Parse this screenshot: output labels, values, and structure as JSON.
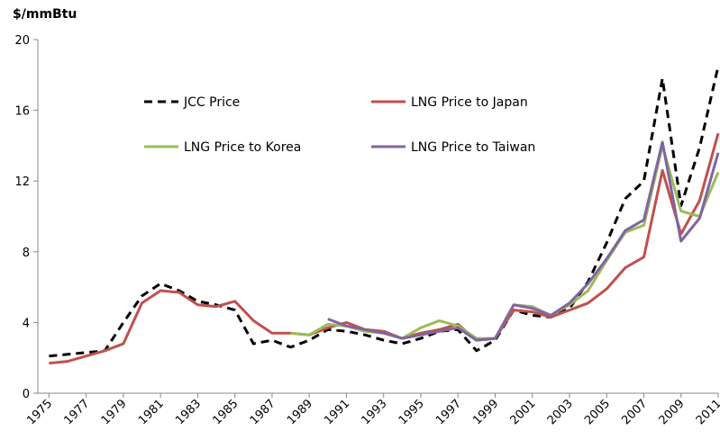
{
  "chart_data": {
    "type": "line",
    "y_label": "$/mmBtu",
    "x": [
      1975,
      1976,
      1977,
      1978,
      1979,
      1980,
      1981,
      1982,
      1983,
      1984,
      1985,
      1986,
      1987,
      1988,
      1989,
      1990,
      1991,
      1992,
      1993,
      1994,
      1995,
      1996,
      1997,
      1998,
      1999,
      2000,
      2001,
      2002,
      2003,
      2004,
      2005,
      2006,
      2007,
      2008,
      2009,
      2010,
      2011
    ],
    "xlim": [
      1974.4,
      2011
    ],
    "xticks": [
      1975,
      1977,
      1979,
      1981,
      1983,
      1985,
      1987,
      1989,
      1991,
      1993,
      1995,
      1997,
      1999,
      2001,
      2003,
      2005,
      2007,
      2009,
      2011
    ],
    "ylim": [
      0,
      20
    ],
    "yticks": [
      0,
      4,
      8,
      12,
      16,
      20
    ],
    "grid": false,
    "series": [
      {
        "name": "JCC Price",
        "color": "#000000",
        "dash": true,
        "values": [
          2.1,
          2.2,
          2.3,
          2.4,
          4.0,
          5.5,
          6.2,
          5.8,
          5.2,
          5.0,
          4.7,
          2.8,
          3.0,
          2.6,
          3.0,
          3.6,
          3.5,
          3.3,
          3.0,
          2.8,
          3.1,
          3.5,
          3.6,
          2.4,
          3.0,
          4.7,
          4.4,
          4.3,
          4.8,
          6.3,
          8.5,
          11.0,
          12.0,
          17.8,
          10.6,
          13.9,
          18.5
        ]
      },
      {
        "name": "LNG Price to Japan",
        "color": "#c0504d",
        "dash": false,
        "values": [
          1.7,
          1.8,
          2.1,
          2.4,
          2.8,
          5.1,
          5.8,
          5.7,
          5.0,
          4.9,
          5.2,
          4.1,
          3.4,
          3.4,
          3.3,
          3.7,
          4.0,
          3.6,
          3.5,
          3.1,
          3.4,
          3.6,
          3.9,
          3.0,
          3.1,
          4.7,
          4.6,
          4.3,
          4.7,
          5.1,
          5.9,
          7.1,
          7.7,
          12.6,
          9.0,
          10.9,
          14.7
        ]
      },
      {
        "name": "LNG Price to Korea",
        "color": "#9bbb59",
        "dash": false,
        "values": [
          null,
          null,
          null,
          null,
          null,
          null,
          null,
          null,
          null,
          null,
          null,
          null,
          null,
          3.4,
          3.3,
          3.9,
          3.8,
          3.5,
          3.4,
          3.1,
          3.7,
          4.1,
          3.8,
          3.1,
          3.1,
          5.0,
          4.9,
          4.4,
          5.0,
          5.8,
          7.5,
          9.1,
          9.5,
          14.0,
          10.3,
          10.0,
          12.5
        ]
      },
      {
        "name": "LNG Price to Taiwan",
        "color": "#8064a2",
        "dash": false,
        "values": [
          null,
          null,
          null,
          null,
          null,
          null,
          null,
          null,
          null,
          null,
          null,
          null,
          null,
          null,
          null,
          4.2,
          3.8,
          3.6,
          3.4,
          3.1,
          3.3,
          3.5,
          3.7,
          3.0,
          3.1,
          5.0,
          4.8,
          4.4,
          5.1,
          6.2,
          7.6,
          9.2,
          9.8,
          14.2,
          8.6,
          9.9,
          13.6
        ]
      }
    ]
  }
}
